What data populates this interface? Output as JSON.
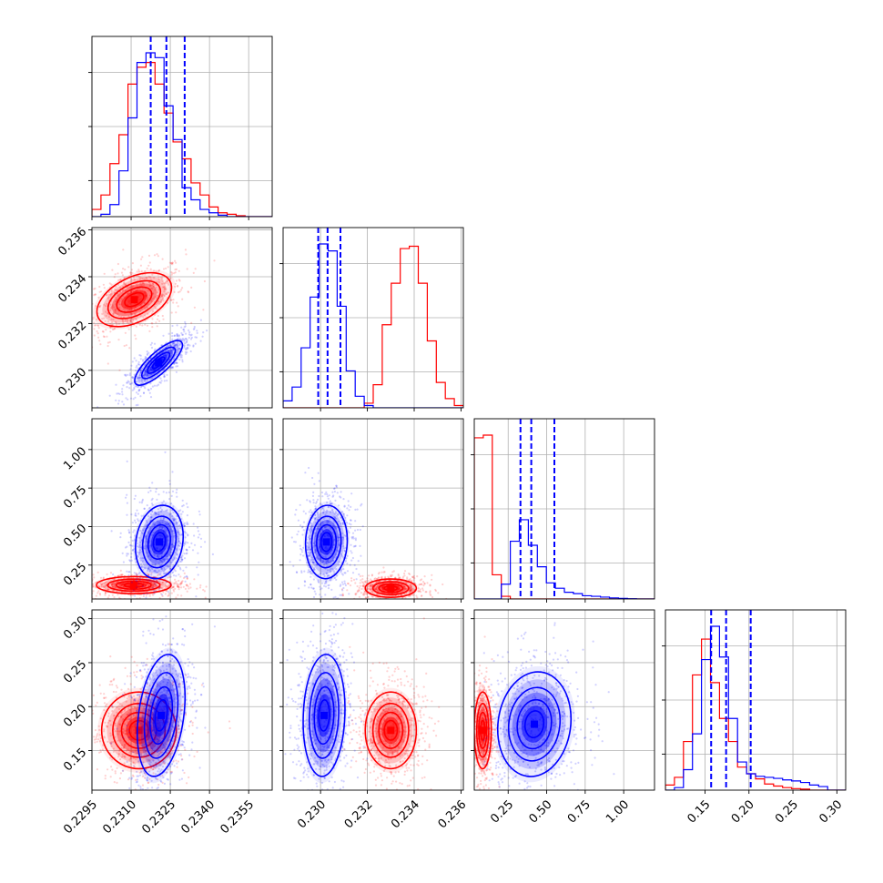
{
  "chart_data": {
    "type": "corner",
    "title": "",
    "grid": true,
    "series": [
      {
        "color": "#ff0000"
      },
      {
        "color": "#0000ff"
      }
    ],
    "quantile_line_color": "#0000ff",
    "quantile_line_style": "dashed",
    "params": [
      {
        "range": [
          0.2295,
          0.2364
        ],
        "ticks": [
          0.2295,
          0.231,
          0.2325,
          0.234,
          0.2355
        ],
        "tick_labels": [
          "0.2295",
          "0.2310",
          "0.2325",
          "0.2340",
          "0.2355"
        ],
        "quantiles": [
          0.23175,
          0.23235,
          0.23305
        ],
        "hist": {
          "red": [
            0.15,
            0.45,
            1.1,
            1.7,
            2.75,
            3.1,
            3.2,
            2.75,
            2.15,
            1.55,
            1.2,
            0.7,
            0.45,
            0.2,
            0.08,
            0.05,
            0.02,
            0.0,
            0.0,
            0.0
          ],
          "blue": [
            0.0,
            0.05,
            0.25,
            0.95,
            2.05,
            3.2,
            3.4,
            3.3,
            2.3,
            1.6,
            0.6,
            0.35,
            0.15,
            0.08,
            0.03,
            0.0,
            0.0,
            0.0,
            0.0,
            0.0
          ]
        }
      },
      {
        "range": [
          0.2284,
          0.2361
        ],
        "ticks": [
          0.23,
          0.232,
          0.234,
          0.236
        ],
        "tick_labels": [
          "0.230",
          "0.232",
          "0.234",
          "0.236"
        ],
        "quantiles": [
          0.2299,
          0.2303,
          0.23085
        ],
        "hist": {
          "red": [
            0.0,
            0.0,
            0.0,
            0.0,
            0.0,
            0.0,
            0.0,
            0.0,
            0.0,
            0.1,
            0.5,
            1.8,
            2.7,
            3.45,
            3.5,
            2.7,
            1.45,
            0.55,
            0.2,
            0.05
          ],
          "blue": [
            0.15,
            0.45,
            1.3,
            2.4,
            3.55,
            3.4,
            2.2,
            0.8,
            0.25,
            0.05,
            0.0,
            0.0,
            0.0,
            0.0,
            0.0,
            0.0,
            0.0,
            0.0,
            0.0,
            0.0
          ]
        }
      },
      {
        "range": [
          0.03,
          1.2
        ],
        "ticks": [
          0.25,
          0.5,
          0.75,
          1.0
        ],
        "tick_labels": [
          "0.25",
          "0.50",
          "0.75",
          "1.00"
        ],
        "quantiles": [
          0.33,
          0.4,
          0.55
        ],
        "hist": {
          "red": [
            6.0,
            6.1,
            0.9,
            0.1,
            0.0,
            0.0,
            0.0,
            0.0,
            0.0,
            0.0,
            0.0,
            0.0,
            0.0,
            0.0,
            0.0,
            0.0,
            0.0,
            0.0,
            0.0,
            0.0
          ],
          "blue": [
            0.0,
            0.0,
            0.0,
            0.55,
            2.15,
            2.95,
            2.0,
            1.2,
            0.6,
            0.4,
            0.25,
            0.2,
            0.12,
            0.1,
            0.07,
            0.04,
            0.02,
            0.01,
            0.0,
            0.0
          ]
        }
      },
      {
        "range": [
          0.105,
          0.31
        ],
        "ticks": [
          0.15,
          0.2,
          0.25,
          0.3
        ],
        "tick_labels": [
          "0.15",
          "0.20",
          "0.25",
          "0.30"
        ],
        "quantiles": [
          0.157,
          0.174,
          0.202
        ],
        "hist": {
          "red": [
            0.1,
            0.25,
            0.95,
            2.25,
            2.95,
            2.1,
            1.4,
            0.95,
            0.45,
            0.32,
            0.22,
            0.12,
            0.08,
            0.05,
            0.03,
            0.02,
            0.0,
            0.0,
            0.0,
            0.0
          ],
          "blue": [
            0.0,
            0.05,
            0.4,
            1.1,
            2.55,
            3.2,
            2.6,
            1.4,
            0.55,
            0.32,
            0.27,
            0.25,
            0.23,
            0.2,
            0.18,
            0.15,
            0.1,
            0.07,
            0.0,
            0.0
          ]
        }
      }
    ],
    "pairs": [
      {
        "row": 1,
        "col": 0,
        "red": {
          "mean": [
            0.23112,
            0.23302
          ],
          "sd": [
            0.00072,
            0.00058
          ],
          "rho": 0.45
        },
        "blue": {
          "mean": [
            0.23205,
            0.23032
          ],
          "sd": [
            0.00046,
            0.00048
          ],
          "rho": 0.8
        }
      },
      {
        "row": 2,
        "col": 0,
        "red": {
          "mean": [
            0.2311,
            0.12
          ],
          "sd": [
            0.00072,
            0.028
          ],
          "rho": 0.0
        },
        "blue": {
          "mean": [
            0.23208,
            0.4
          ],
          "sd": [
            0.00046,
            0.12
          ],
          "rho": 0.15
        }
      },
      {
        "row": 2,
        "col": 1,
        "red": {
          "mean": [
            0.233,
            0.1
          ],
          "sd": [
            0.00055,
            0.03
          ],
          "rho": 0.0
        },
        "blue": {
          "mean": [
            0.23025,
            0.4
          ],
          "sd": [
            0.00045,
            0.12
          ],
          "rho": 0.05
        }
      },
      {
        "row": 3,
        "col": 0,
        "red": {
          "mean": [
            0.2313,
            0.173
          ],
          "sd": [
            0.00072,
            0.022
          ],
          "rho": 0.0
        },
        "blue": {
          "mean": [
            0.23215,
            0.19
          ],
          "sd": [
            0.00046,
            0.035
          ],
          "rho": 0.3
        }
      },
      {
        "row": 3,
        "col": 1,
        "red": {
          "mean": [
            0.233,
            0.173
          ],
          "sd": [
            0.00055,
            0.022
          ],
          "rho": 0.0
        },
        "blue": {
          "mean": [
            0.23015,
            0.19
          ],
          "sd": [
            0.00045,
            0.035
          ],
          "rho": 0.1
        }
      },
      {
        "row": 3,
        "col": 2,
        "red": {
          "mean": [
            0.085,
            0.173
          ],
          "sd": [
            0.028,
            0.022
          ],
          "rho": 0.0
        },
        "blue": {
          "mean": [
            0.42,
            0.18
          ],
          "sd": [
            0.12,
            0.03
          ],
          "rho": 0.1
        }
      }
    ]
  }
}
